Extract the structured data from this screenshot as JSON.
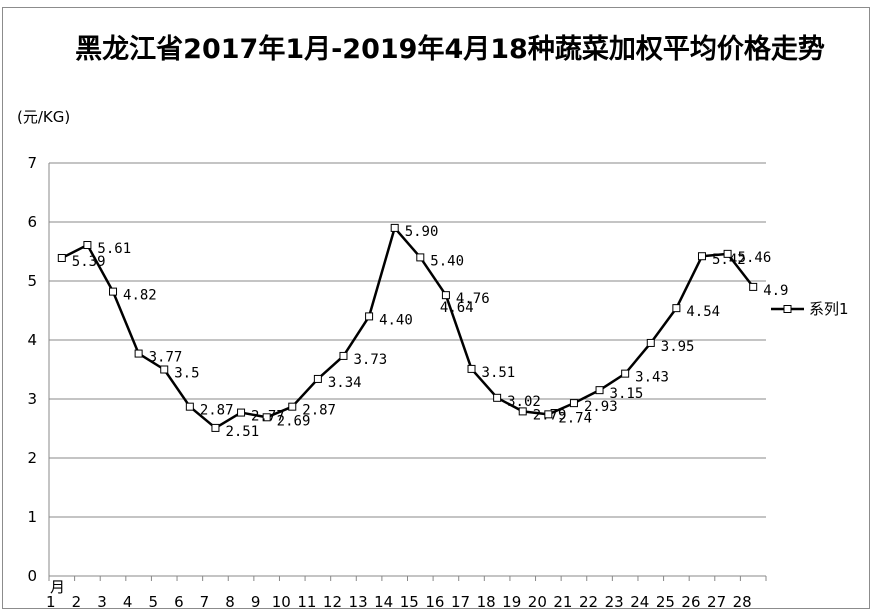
{
  "chart_data": {
    "type": "line",
    "title": "黑龙江省2017年1月-2019年4月18种蔬菜加权平均价格走势",
    "ylabel": "(元/KG)",
    "xlabel": "月",
    "ylim": [
      0,
      7
    ],
    "yticks": [
      "0",
      "1",
      "2",
      "3",
      "4",
      "5",
      "6",
      "7"
    ],
    "grid": true,
    "legend_position": "right",
    "line_color": "#000000",
    "marker": "hollow-square",
    "categories": [
      "1",
      "2",
      "3",
      "4",
      "5",
      "6",
      "7",
      "8",
      "9",
      "10",
      "11",
      "12",
      "13",
      "14",
      "15",
      "16",
      "17",
      "18",
      "19",
      "20",
      "21",
      "22",
      "23",
      "24",
      "25",
      "26",
      "27",
      "28"
    ],
    "series": [
      {
        "name": "系列1",
        "values": [
          5.39,
          5.61,
          4.82,
          3.77,
          3.5,
          2.87,
          2.51,
          2.77,
          2.69,
          2.87,
          3.34,
          3.73,
          4.4,
          5.9,
          5.4,
          4.76,
          3.51,
          3.02,
          2.79,
          2.74,
          2.93,
          3.15,
          3.43,
          3.95,
          4.54,
          5.42,
          5.46,
          4.9
        ],
        "labels": [
          "5.39",
          "5.61",
          "4.82",
          "3.77",
          "3.5",
          "2.87",
          "2.51",
          "2.77",
          "2.69",
          "2.87",
          "3.34",
          "3.73",
          "4.40",
          "5.90",
          "5.40",
          "4.76",
          "3.51",
          "3.02",
          "2.79",
          "2.74",
          "2.93",
          "3.15",
          "3.43",
          "3.95",
          "4.54",
          "5.42",
          "5.46",
          "4.9"
        ]
      }
    ],
    "annotations": [
      "4.64"
    ]
  }
}
